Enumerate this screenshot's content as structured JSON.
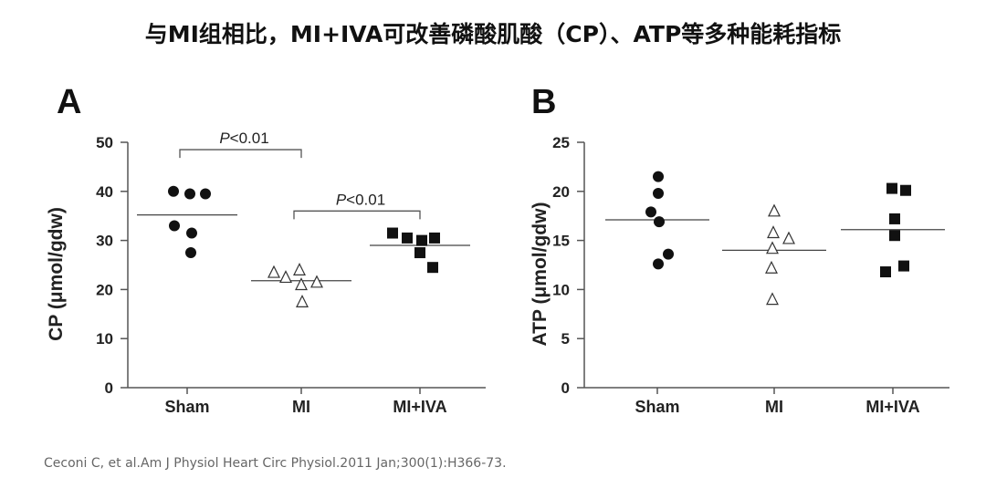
{
  "title": "与MI组相比，MI+IVA可改善磷酸肌酸（CP）、ATP等多种能耗指标",
  "citation": "Ceconi C, et al.Am J Physiol Heart Circ Physiol.2011 Jan;300(1):H366-73.",
  "chart_data": [
    {
      "type": "scatter",
      "panel": "A",
      "ylabel": "CP (μmol/gdw)",
      "ylim": [
        0,
        50
      ],
      "yticks": [
        0,
        10,
        20,
        30,
        40,
        50
      ],
      "categories": [
        "Sham",
        "MI",
        "MI+IVA"
      ],
      "series": [
        {
          "name": "Sham",
          "marker": "filled-circle",
          "values": [
            40,
            39.5,
            39.5,
            33,
            31.5,
            27.5
          ],
          "mean": 35.2
        },
        {
          "name": "MI",
          "marker": "open-triangle",
          "values": [
            23.5,
            24,
            21.5,
            22.5,
            21,
            17.5
          ],
          "mean": 21.8
        },
        {
          "name": "MI+IVA",
          "marker": "filled-square",
          "values": [
            31.5,
            30.5,
            30,
            30.5,
            27.5,
            24.5
          ],
          "mean": 29
        }
      ],
      "annotations": [
        {
          "from": "Sham",
          "to": "MI",
          "label": "<0.01",
          "label_prefix": "P",
          "y": 48.5
        },
        {
          "from": "MI",
          "to": "MI+IVA",
          "label": "<0.01",
          "label_prefix": "P",
          "y": 36
        }
      ]
    },
    {
      "type": "scatter",
      "panel": "B",
      "ylabel": "ATP (μmol/gdw)",
      "ylim": [
        0,
        25
      ],
      "yticks": [
        0,
        5,
        10,
        15,
        20,
        25
      ],
      "categories": [
        "Sham",
        "MI",
        "MI+IVA"
      ],
      "series": [
        {
          "name": "Sham",
          "marker": "filled-circle",
          "values": [
            21.5,
            19.8,
            17.9,
            16.9,
            13.6,
            12.6
          ],
          "mean": 17.1
        },
        {
          "name": "MI",
          "marker": "open-triangle",
          "values": [
            18,
            15.8,
            15.2,
            14.2,
            12.2,
            9
          ],
          "mean": 14
        },
        {
          "name": "MI+IVA",
          "marker": "filled-square",
          "values": [
            20.3,
            20.1,
            17.2,
            15.5,
            12.4,
            11.8
          ],
          "mean": 16.1
        }
      ],
      "annotations": []
    }
  ]
}
